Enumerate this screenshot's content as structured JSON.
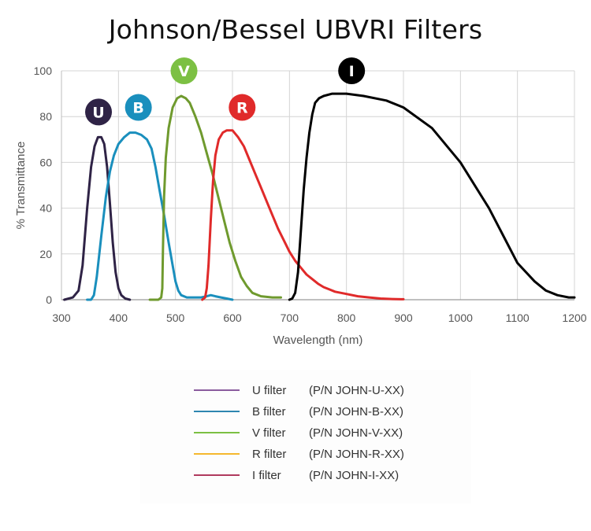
{
  "title": "Johnson/Bessel UBVRI Filters",
  "chart_data": {
    "type": "line",
    "title": "Johnson/Bessel UBVRI Filters",
    "xlabel": "Wavelength (nm)",
    "ylabel": "% Transmittance",
    "xlim": [
      300,
      1200
    ],
    "ylim": [
      0,
      100
    ],
    "xticks": [
      "300",
      "400",
      "500",
      "600",
      "700",
      "800",
      "900",
      "1000",
      "1100",
      "1200"
    ],
    "yticks": [
      "0",
      "20",
      "40",
      "60",
      "80",
      "100"
    ],
    "grid": true,
    "series": [
      {
        "name": "U",
        "color": "#2f2346",
        "points": [
          [
            305,
            0
          ],
          [
            320,
            1
          ],
          [
            330,
            4
          ],
          [
            337,
            15
          ],
          [
            345,
            40
          ],
          [
            352,
            58
          ],
          [
            358,
            67
          ],
          [
            364,
            71
          ],
          [
            370,
            71
          ],
          [
            375,
            68
          ],
          [
            380,
            58
          ],
          [
            385,
            42
          ],
          [
            390,
            25
          ],
          [
            395,
            12
          ],
          [
            400,
            5
          ],
          [
            405,
            2
          ],
          [
            412,
            0.5
          ],
          [
            420,
            0
          ]
        ]
      },
      {
        "name": "B",
        "color": "#1a8fbd",
        "points": [
          [
            345,
            0
          ],
          [
            352,
            0
          ],
          [
            357,
            2
          ],
          [
            362,
            10
          ],
          [
            370,
            28
          ],
          [
            378,
            45
          ],
          [
            385,
            56
          ],
          [
            392,
            63
          ],
          [
            400,
            68
          ],
          [
            410,
            71
          ],
          [
            420,
            73
          ],
          [
            430,
            73
          ],
          [
            440,
            72
          ],
          [
            450,
            70
          ],
          [
            458,
            66
          ],
          [
            465,
            58
          ],
          [
            472,
            48
          ],
          [
            480,
            37
          ],
          [
            488,
            25
          ],
          [
            495,
            15
          ],
          [
            500,
            8
          ],
          [
            505,
            4
          ],
          [
            510,
            2
          ],
          [
            520,
            1
          ],
          [
            530,
            1
          ],
          [
            545,
            1
          ],
          [
            555,
            1.5
          ],
          [
            562,
            2
          ],
          [
            570,
            1.5
          ],
          [
            580,
            1
          ],
          [
            590,
            0.5
          ],
          [
            600,
            0
          ]
        ]
      },
      {
        "name": "V",
        "color": "#6f9a2e",
        "points": [
          [
            455,
            0
          ],
          [
            470,
            0
          ],
          [
            475,
            1
          ],
          [
            477,
            5
          ],
          [
            478,
            22
          ],
          [
            480,
            45
          ],
          [
            483,
            62
          ],
          [
            488,
            75
          ],
          [
            495,
            84
          ],
          [
            503,
            88
          ],
          [
            510,
            89
          ],
          [
            518,
            88
          ],
          [
            525,
            86
          ],
          [
            535,
            80
          ],
          [
            545,
            73
          ],
          [
            555,
            64
          ],
          [
            565,
            55
          ],
          [
            575,
            45
          ],
          [
            585,
            35
          ],
          [
            595,
            25
          ],
          [
            605,
            17
          ],
          [
            615,
            10
          ],
          [
            625,
            6
          ],
          [
            635,
            3
          ],
          [
            650,
            1.5
          ],
          [
            670,
            1
          ],
          [
            685,
            1
          ]
        ]
      },
      {
        "name": "R",
        "color": "#e02a2a",
        "points": [
          [
            547,
            0
          ],
          [
            552,
            1
          ],
          [
            555,
            5
          ],
          [
            558,
            15
          ],
          [
            562,
            35
          ],
          [
            566,
            52
          ],
          [
            570,
            63
          ],
          [
            576,
            70
          ],
          [
            583,
            73
          ],
          [
            590,
            74
          ],
          [
            600,
            74
          ],
          [
            610,
            71
          ],
          [
            620,
            67
          ],
          [
            630,
            61
          ],
          [
            640,
            55
          ],
          [
            650,
            49
          ],
          [
            660,
            43
          ],
          [
            670,
            37
          ],
          [
            680,
            31
          ],
          [
            690,
            26
          ],
          [
            700,
            21
          ],
          [
            710,
            17
          ],
          [
            720,
            14
          ],
          [
            730,
            11
          ],
          [
            740,
            9
          ],
          [
            750,
            7
          ],
          [
            760,
            5.5
          ],
          [
            770,
            4.5
          ],
          [
            780,
            3.5
          ],
          [
            800,
            2.5
          ],
          [
            820,
            1.5
          ],
          [
            840,
            1
          ],
          [
            860,
            0.5
          ],
          [
            880,
            0.3
          ],
          [
            900,
            0.2
          ]
        ]
      },
      {
        "name": "I",
        "color": "#000000",
        "points": [
          [
            700,
            0
          ],
          [
            705,
            0.5
          ],
          [
            710,
            3
          ],
          [
            715,
            12
          ],
          [
            720,
            30
          ],
          [
            725,
            48
          ],
          [
            730,
            62
          ],
          [
            735,
            73
          ],
          [
            740,
            81
          ],
          [
            745,
            86
          ],
          [
            752,
            88
          ],
          [
            760,
            89
          ],
          [
            775,
            90
          ],
          [
            800,
            90
          ],
          [
            830,
            89
          ],
          [
            870,
            87
          ],
          [
            900,
            84
          ],
          [
            950,
            75
          ],
          [
            1000,
            60
          ],
          [
            1050,
            40
          ],
          [
            1100,
            16
          ],
          [
            1130,
            8
          ],
          [
            1150,
            4
          ],
          [
            1170,
            2
          ],
          [
            1190,
            1
          ],
          [
            1200,
            1
          ]
        ]
      }
    ],
    "badges": [
      {
        "label": "U",
        "x": 365,
        "y": 82,
        "color": "#2f2346"
      },
      {
        "label": "B",
        "x": 435,
        "y": 84,
        "color": "#1a8fbd"
      },
      {
        "label": "V",
        "x": 515,
        "y": 100,
        "color": "#7cc043"
      },
      {
        "label": "R",
        "x": 617,
        "y": 84,
        "color": "#e02a2a"
      },
      {
        "label": "I",
        "x": 809,
        "y": 100,
        "color": "#000000"
      }
    ]
  },
  "legend": [
    {
      "name": "U filter",
      "pn": "(P/N JOHN-U-XX)",
      "color": "#8a5c9e"
    },
    {
      "name": "B filter",
      "pn": "(P/N JOHN-B-XX)",
      "color": "#2e86b0"
    },
    {
      "name": "V filter",
      "pn": "(P/N JOHN-V-XX)",
      "color": "#7cc043"
    },
    {
      "name": "R filter",
      "pn": "(P/N JOHN-R-XX)",
      "color": "#f5b82e"
    },
    {
      "name": "I filter",
      "pn": "(P/N JOHN-I-XX)",
      "color": "#b03a5e"
    }
  ]
}
